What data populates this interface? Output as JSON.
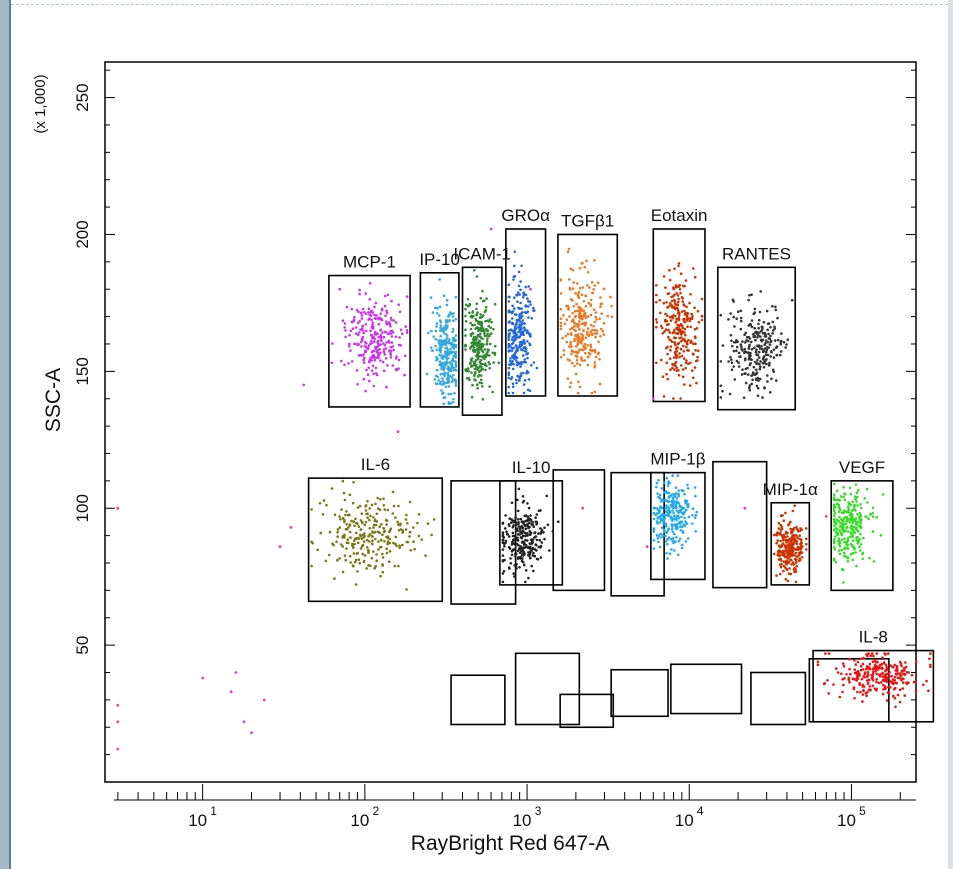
{
  "chart_data": {
    "type": "scatter",
    "xlabel": "RayBright Red 647-A",
    "ylabel": "SSC-A",
    "y_multiplier": "(x 1,000)",
    "x_scale": "log",
    "xlim": [
      2.5,
      250000
    ],
    "ylim": [
      0,
      263
    ],
    "x_ticks": [
      {
        "value": 10,
        "label": "10",
        "exp": "1"
      },
      {
        "value": 100,
        "label": "10",
        "exp": "2"
      },
      {
        "value": 1000,
        "label": "10",
        "exp": "3"
      },
      {
        "value": 10000,
        "label": "10",
        "exp": "4"
      },
      {
        "value": 100000,
        "label": "10",
        "exp": "5"
      }
    ],
    "y_ticks": [
      50,
      100,
      150,
      200,
      250
    ],
    "grid": false,
    "populations": [
      {
        "name": "MCP-1",
        "color": "#cc33ee",
        "x_center": 115,
        "y_center": 162,
        "gate": {
          "x": [
            60,
            190
          ],
          "y": [
            137,
            185
          ]
        }
      },
      {
        "name": "IP-10",
        "color": "#33aadd",
        "x_center": 320,
        "y_center": 157,
        "gate": {
          "x": [
            220,
            380
          ],
          "y": [
            137,
            186
          ]
        }
      },
      {
        "name": "ICAM-1",
        "color": "#338833",
        "x_center": 500,
        "y_center": 160,
        "gate": {
          "x": [
            400,
            700
          ],
          "y": [
            134,
            188
          ]
        }
      },
      {
        "name": "GROα",
        "color": "#2266dd",
        "x_center": 880,
        "y_center": 163,
        "gate": {
          "x": [
            740,
            1300
          ],
          "y": [
            141,
            202
          ]
        }
      },
      {
        "name": "TGFβ1",
        "color": "#ee7722",
        "x_center": 2200,
        "y_center": 167,
        "gate": {
          "x": [
            1550,
            3600
          ],
          "y": [
            141,
            200
          ]
        }
      },
      {
        "name": "Eotaxin",
        "color": "#cc3300",
        "x_center": 8500,
        "y_center": 166,
        "gate": {
          "x": [
            6000,
            12500
          ],
          "y": [
            139,
            202
          ]
        }
      },
      {
        "name": "RANTES",
        "color": "#333333",
        "x_center": 26000,
        "y_center": 158,
        "gate": {
          "x": [
            15000,
            45000
          ],
          "y": [
            136,
            188
          ]
        }
      },
      {
        "name": "IL-6",
        "color": "#777711",
        "x_center": 105,
        "y_center": 90,
        "gate": {
          "x": [
            45,
            300
          ],
          "y": [
            66,
            111
          ]
        }
      },
      {
        "name": "IL-10",
        "color": "#222222",
        "x_center": 920,
        "y_center": 89,
        "gate": {
          "x": [
            680,
            1650
          ],
          "y": [
            72,
            110
          ]
        }
      },
      {
        "name": "MIP-1β",
        "color": "#22aaee",
        "x_center": 7800,
        "y_center": 97,
        "gate": {
          "x": [
            5800,
            12500
          ],
          "y": [
            74,
            113
          ]
        }
      },
      {
        "name": "MIP-1α",
        "color": "#cc3300",
        "x_center": 42000,
        "y_center": 86,
        "gate": {
          "x": [
            32000,
            55000
          ],
          "y": [
            72,
            102
          ]
        }
      },
      {
        "name": "VEGF",
        "color": "#33dd22",
        "x_center": 95000,
        "y_center": 94,
        "gate": {
          "x": [
            75000,
            180000
          ],
          "y": [
            70,
            110
          ]
        }
      },
      {
        "name": "IL-8",
        "color": "#ee1111",
        "x_center": 145000,
        "y_center": 39,
        "gate": {
          "x": [
            58000,
            320000
          ],
          "y": [
            22,
            48
          ]
        }
      }
    ],
    "empty_gates": [
      {
        "x": [
          340,
          850
        ],
        "y": [
          65,
          110
        ]
      },
      {
        "x": [
          1450,
          3000
        ],
        "y": [
          70,
          114
        ]
      },
      {
        "x": [
          3300,
          7000
        ],
        "y": [
          68,
          113
        ]
      },
      {
        "x": [
          14000,
          30000
        ],
        "y": [
          71,
          117
        ]
      },
      {
        "x": [
          340,
          730
        ],
        "y": [
          21,
          39
        ]
      },
      {
        "x": [
          850,
          2100
        ],
        "y": [
          21,
          47
        ]
      },
      {
        "x": [
          1600,
          3400
        ],
        "y": [
          20,
          32
        ]
      },
      {
        "x": [
          3300,
          7400
        ],
        "y": [
          24,
          41
        ]
      },
      {
        "x": [
          7700,
          21000
        ],
        "y": [
          25,
          43
        ]
      },
      {
        "x": [
          24000,
          52000
        ],
        "y": [
          21,
          40
        ]
      },
      {
        "x": [
          55000,
          170000
        ],
        "y": [
          22,
          45
        ]
      }
    ]
  }
}
